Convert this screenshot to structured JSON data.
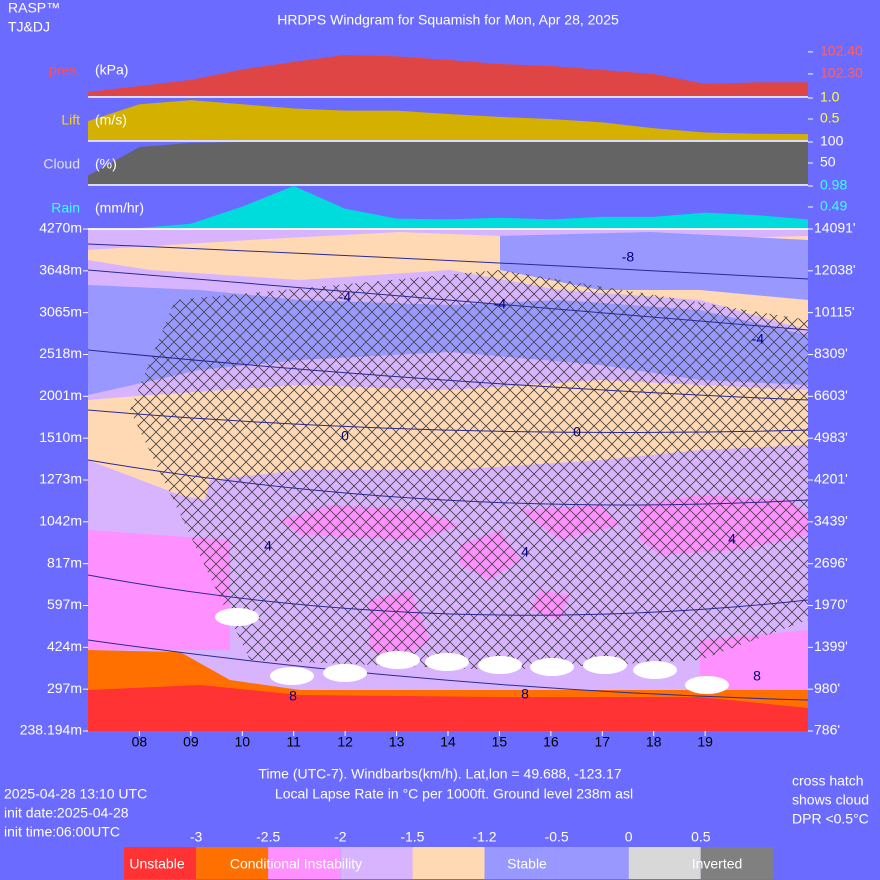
{
  "header": {
    "brand": "RASP™",
    "authors": "TJ&DJ",
    "title": "HRDPS Windgram for Squamish for Mon, Apr 28, 2025"
  },
  "chart_data": [
    {
      "type": "area",
      "label": "pres.",
      "unit": "(kPa)",
      "color": "#e04545",
      "label_color": "#ff5050",
      "tick_color": "#ff6060",
      "x": [
        7,
        8,
        9,
        10,
        11,
        12,
        13,
        14,
        15,
        16,
        17,
        18,
        19,
        20,
        21
      ],
      "values": [
        102.218,
        102.245,
        102.273,
        102.32,
        102.355,
        102.386,
        102.38,
        102.364,
        102.345,
        102.336,
        102.318,
        102.3,
        102.255,
        102.262,
        102.262
      ],
      "xlim": [
        7,
        21
      ],
      "ylim": [
        102.2,
        102.445
      ],
      "yticks": [
        {
          "value": 102.4,
          "label": "102.40"
        },
        {
          "value": 102.3,
          "label": "102.30"
        }
      ]
    },
    {
      "type": "area",
      "label": "Lift",
      "unit": "(m/s)",
      "color": "#d4b000",
      "label_color": "#ffd700",
      "tick_color": "#ffff40",
      "x": [
        7,
        8,
        9,
        10,
        11,
        12,
        13,
        14,
        15,
        16,
        17,
        18,
        19,
        20,
        21
      ],
      "values": [
        0.45,
        0.85,
        0.95,
        0.85,
        0.75,
        0.7,
        0.7,
        0.62,
        0.55,
        0.5,
        0.42,
        0.28,
        0.18,
        0.15,
        0.14
      ],
      "xlim": [
        7,
        21
      ],
      "ylim": [
        0,
        1
      ],
      "yticks": [
        {
          "value": 1,
          "label": "1.0"
        },
        0.5
      ]
    },
    {
      "type": "area",
      "label": "Cloud",
      "unit": "(%)",
      "color": "#646464",
      "label_color": "#e0e0e0",
      "tick_color": "#ffffff",
      "x": [
        7,
        8,
        9,
        10,
        11,
        12,
        13,
        14,
        15,
        16,
        17,
        18,
        19,
        20,
        21
      ],
      "values": [
        20,
        88,
        98,
        100,
        100,
        100,
        100,
        100,
        100,
        100,
        100,
        100,
        100,
        100,
        100
      ],
      "xlim": [
        7,
        21
      ],
      "ylim": [
        0,
        100
      ],
      "yticks": [
        100,
        50
      ]
    },
    {
      "type": "area",
      "label": "Rain",
      "unit": "(mm/hr)",
      "color": "#00dcdc",
      "label_color": "#40ffff",
      "tick_color": "#40ffff",
      "x": [
        7,
        8,
        9,
        10,
        11,
        12,
        13,
        14,
        15,
        16,
        17,
        18,
        19,
        20,
        21
      ],
      "values": [
        0,
        0,
        0.1,
        0.5,
        0.98,
        0.45,
        0.22,
        0.2,
        0.24,
        0.2,
        0.26,
        0.26,
        0.36,
        0.3,
        0.2
      ],
      "xlim": [
        7,
        21
      ],
      "ylim": [
        0,
        0.98
      ],
      "yticks": [
        0.98,
        0.49
      ]
    },
    {
      "type": "windgram",
      "xlim": [
        7,
        21
      ],
      "xticks": [
        {
          "value": 8,
          "label": "08"
        },
        {
          "value": 9,
          "label": "09"
        },
        10,
        11,
        12,
        13,
        14,
        15,
        16,
        17,
        18,
        19
      ],
      "levels_m": [
        "4270m",
        "3648m",
        "3065m",
        "2518m",
        "2001m",
        "1510m",
        "1273m",
        "1042m",
        "817m",
        "597m",
        "424m",
        "297m",
        "238.194m"
      ],
      "levels_ft": [
        "14091'",
        "12038'",
        "10115'",
        "8309'",
        "6603'",
        "4983'",
        "4201'",
        "3439'",
        "2696'",
        "1970'",
        "1399'",
        "980'",
        "786'"
      ],
      "contour_labels": [
        "-8",
        "-4",
        "-4",
        "-4",
        "0",
        "0",
        "4",
        "4",
        "4",
        "8",
        "8",
        "8"
      ],
      "xlabel": "Time (UTC-7). Windbarbs(km/h). Lat,lon = 49.688, -123.17",
      "subtitle": "Local Lapse Rate in °C per 1000ft.   Ground level 238m asl",
      "legend": {
        "colors": [
          "#ff3333",
          "#ff7000",
          "#ff90ff",
          "#d8b4ff",
          "#ffd8b4",
          "#9898ff",
          "#9898ff",
          "#d8d8d8",
          "#808080"
        ],
        "ticks": [
          "-3",
          "-2.5",
          "-2",
          "-1.5",
          "-1.2",
          "-0.5",
          "0",
          "0.5"
        ],
        "names": [
          "Unstable",
          "Conditional Instability",
          "Stable",
          "Inverted"
        ]
      }
    }
  ],
  "footer": {
    "run_time": "2025-04-28 13:10 UTC",
    "init_date": "init date:2025-04-28",
    "init_time": "init time:06:00UTC",
    "note": [
      "cross hatch",
      "shows cloud",
      "DPR <0.5°C"
    ]
  }
}
